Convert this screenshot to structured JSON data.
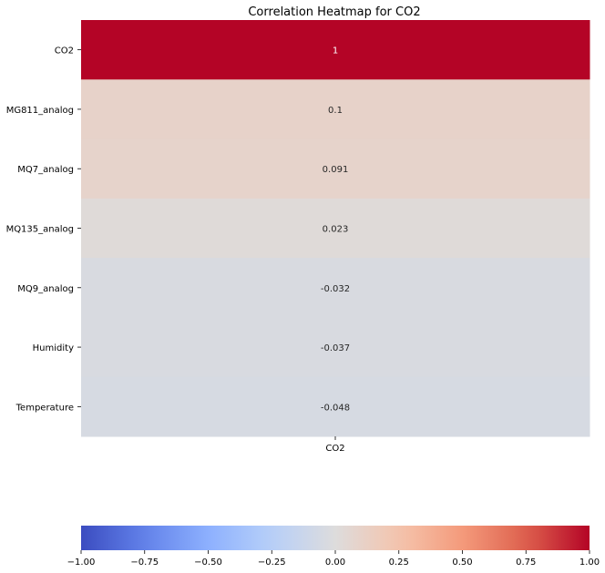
{
  "chart_data": {
    "type": "heatmap",
    "title": "Correlation Heatmap for CO2",
    "xlabel": "",
    "ylabel": "",
    "columns": [
      "CO2"
    ],
    "rows": [
      "CO2",
      "MG811_analog",
      "MQ7_analog",
      "MQ135_analog",
      "MQ9_analog",
      "Humidity",
      "Temperature"
    ],
    "values": [
      [
        1.0
      ],
      [
        0.1
      ],
      [
        0.091
      ],
      [
        0.023
      ],
      [
        -0.032
      ],
      [
        -0.037
      ],
      [
        -0.048
      ]
    ],
    "annotations": [
      "1",
      "0.1",
      "0.091",
      "0.023",
      "-0.032",
      "-0.037",
      "-0.048"
    ],
    "colormap": "coolwarm",
    "vmin": -1.0,
    "vmax": 1.0,
    "colorbar": {
      "orientation": "horizontal",
      "placement": "bottom",
      "ticks": [
        -1.0,
        -0.75,
        -0.5,
        -0.25,
        0.0,
        0.25,
        0.5,
        0.75,
        1.0
      ],
      "tick_labels": [
        "−1.00",
        "−0.75",
        "−0.50",
        "−0.25",
        "0.00",
        "0.25",
        "0.50",
        "0.75",
        "1.00"
      ]
    }
  },
  "colors": {
    "low": "#3b4cc0",
    "mid": "#dddcdc",
    "high": "#b40426",
    "text_dark": "#262626",
    "text_light": "#ffffff"
  }
}
